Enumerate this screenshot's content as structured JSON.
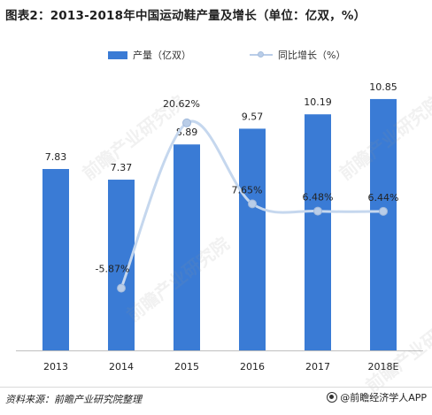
{
  "title": "图表2：2013-2018年中国运动鞋产量及增长（单位：亿双，%）",
  "legend": {
    "bar_label": "产量（亿双）",
    "line_label": "同比增长（%）"
  },
  "source": "资料来源：前瞻产业研究院整理",
  "brand": "@前瞻经济学人APP",
  "watermark_text": "前瞻产业研究院",
  "colors": {
    "bar": "#3a7bd5",
    "line": "#c5d7ee",
    "marker": "#b9cde8"
  },
  "chart_data": {
    "type": "bar",
    "categories": [
      "2013",
      "2014",
      "2015",
      "2016",
      "2017",
      "2018E"
    ],
    "series": [
      {
        "name": "产量（亿双）",
        "type": "bar",
        "values": [
          7.83,
          7.37,
          8.89,
          9.57,
          10.19,
          10.85
        ],
        "labels": [
          "7.83",
          "7.37",
          "8.89",
          "9.57",
          "10.19",
          "10.85"
        ]
      },
      {
        "name": "同比增长（%）",
        "type": "line",
        "smooth": true,
        "values": [
          null,
          -5.87,
          20.62,
          7.65,
          6.48,
          6.44
        ],
        "labels": [
          "",
          "-5.87%",
          "20.62%",
          "7.65%",
          "6.48%",
          "6.44%"
        ]
      }
    ],
    "title": "图表2：2013-2018年中国运动鞋产量及增长（单位：亿双，%）",
    "legend": "top",
    "grid": false
  }
}
